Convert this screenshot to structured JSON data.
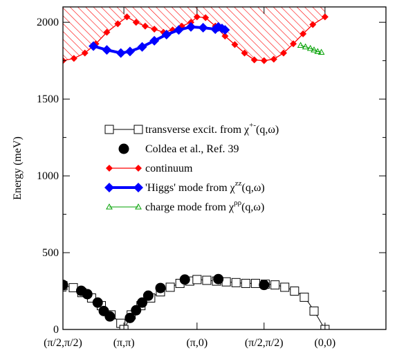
{
  "chart_data": {
    "type": "line",
    "ylabel": "Energy (meV)",
    "ylim": [
      0,
      2100
    ],
    "xlim": [
      0,
      5.3
    ],
    "yticks": [
      0,
      500,
      1000,
      1500,
      2000
    ],
    "xticks": [
      {
        "x": 0,
        "label": "(π/2,π/2)"
      },
      {
        "x": 1,
        "label": "(π,π)"
      },
      {
        "x": 2.2,
        "label": "(π,0)"
      },
      {
        "x": 3.3,
        "label": "(π/2,π/2)"
      },
      {
        "x": 4.3,
        "label": "(0,0)"
      }
    ],
    "grid": false,
    "legend_position": "center",
    "colors": {
      "black": "#000000",
      "red": "#ff0000",
      "blue": "#0000ff",
      "green": "#00a000",
      "hatch": "#ff0000"
    },
    "series": [
      {
        "key": "transverse",
        "name": "transverse excit. from χ",
        "sup": "+-",
        "suffix": "(q,ω)",
        "marker": "open-square",
        "x": [
          0,
          0.17,
          0.31,
          0.47,
          0.63,
          0.79,
          0.95,
          1.0,
          1.12,
          1.28,
          1.44,
          1.6,
          1.76,
          1.92,
          2.08,
          2.2,
          2.36,
          2.52,
          2.68,
          2.84,
          3.0,
          3.16,
          3.32,
          3.48,
          3.64,
          3.8,
          3.96,
          4.12,
          4.3
        ],
        "y": [
          285,
          272,
          240,
          205,
          155,
          95,
          40,
          0,
          95,
          155,
          205,
          245,
          275,
          300,
          315,
          325,
          320,
          315,
          310,
          305,
          300,
          300,
          295,
          290,
          275,
          250,
          210,
          120,
          0
        ]
      },
      {
        "key": "coldea",
        "name": "Coldea et al., Ref. 39",
        "marker": "filled-circle",
        "x": [
          0,
          0.3,
          0.4,
          0.57,
          0.67,
          0.77,
          1.1,
          1.2,
          1.3,
          1.4,
          1.6,
          2.0,
          2.55,
          3.3
        ],
        "y": [
          290,
          252,
          230,
          175,
          120,
          85,
          75,
          125,
          175,
          220,
          270,
          325,
          328,
          290
        ]
      },
      {
        "key": "continuum",
        "name": "continuum",
        "marker": "red-diamond",
        "x": [
          0,
          0.18,
          0.36,
          0.54,
          0.72,
          0.9,
          1.05,
          1.2,
          1.35,
          1.5,
          1.65,
          1.8,
          1.95,
          2.1,
          2.2,
          2.34,
          2.5,
          2.66,
          2.82,
          2.98,
          3.14,
          3.3,
          3.46,
          3.62,
          3.78,
          3.94,
          4.1,
          4.3
        ],
        "y": [
          1750,
          1765,
          1800,
          1860,
          1935,
          1990,
          2035,
          2000,
          1975,
          1955,
          1935,
          1950,
          1975,
          2000,
          2035,
          2030,
          1975,
          1910,
          1855,
          1800,
          1755,
          1750,
          1760,
          1800,
          1860,
          1925,
          1985,
          2035
        ]
      },
      {
        "key": "higgs",
        "name": "'Higgs' mode from χ",
        "sup": "zz",
        "suffix": "(q,ω)",
        "marker": "blue-diamond",
        "x": [
          0.5,
          0.72,
          0.95,
          1.1,
          1.3,
          1.5,
          1.7,
          1.9,
          2.1,
          2.3,
          2.5,
          2.55,
          2.61,
          2.66
        ],
        "y": [
          1845,
          1820,
          1800,
          1810,
          1840,
          1880,
          1920,
          1950,
          1970,
          1965,
          1955,
          1970,
          1960,
          1950
        ]
      },
      {
        "key": "charge",
        "name": "charge mode from χ",
        "sup": "ρρ",
        "suffix": "(q,ω)",
        "marker": "green-triangle",
        "x": [
          3.9,
          3.98,
          4.06,
          4.12,
          4.18,
          4.24
        ],
        "y": [
          1850,
          1840,
          1830,
          1820,
          1810,
          1805
        ]
      }
    ]
  }
}
